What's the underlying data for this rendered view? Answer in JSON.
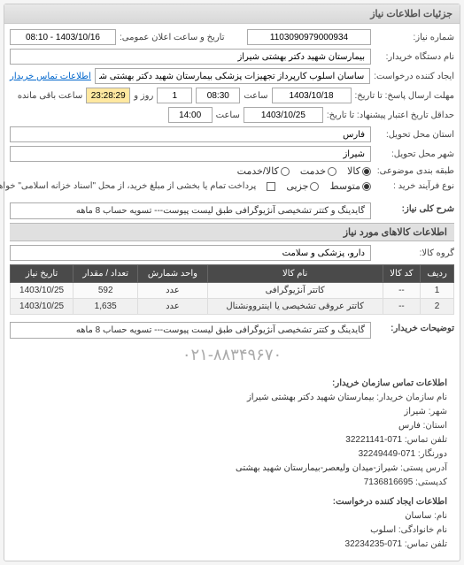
{
  "panel": {
    "title": "جزئیات اطلاعات نیاز"
  },
  "fields": {
    "request_no_label": "شماره نیاز:",
    "request_no": "1103090979000934",
    "public_date_label": "تاریخ و ساعت اعلان عمومی:",
    "public_date": "1403/10/16 - 08:10",
    "buyer_org_label": "نام دستگاه خریدار:",
    "buyer_org": "بیمارستان شهید دکتر بهشتی شیراز",
    "requester_label": "ایجاد کننده درخواست:",
    "requester": "ساسان اسلوب کارپرداز تجهیزات پزشکی بیمارستان شهید دکتر بهشتی شیراز",
    "buyer_contact_link": "اطلاعات تماس خریدار",
    "reply_deadline_label": "مهلت ارسال پاسخ: تا تاریخ:",
    "reply_date": "1403/10/18",
    "time_label": "ساعت",
    "reply_time": "08:30",
    "days_sep": "روز و",
    "days": "1",
    "remaining_label": "ساعت باقی مانده",
    "remaining": "23:28:29",
    "validity_label": "حداقل تاریخ اعتبار پیشنهاد: تا تاریخ:",
    "validity_date": "1403/10/25",
    "validity_time": "14:00",
    "delivery_province_label": "استان محل تحویل:",
    "delivery_province": "فارس",
    "delivery_city_label": "شهر محل تحویل:",
    "delivery_city": "شیراز",
    "priority_label": "طبقه بندی موضوعی:",
    "priority_goods": "کالا",
    "priority_service": "خدمت",
    "priority_both": "کالا/خدمت",
    "process_label": "نوع فرآیند خرید :",
    "process_small": "متوسط",
    "process_partial": "جزیی",
    "process_note": "پرداخت تمام یا بخشی از مبلغ خرید، از محل \"اسناد خزانه اسلامی\" خواهد بود.",
    "summary_label": "شرح کلی نیاز:",
    "summary": "گایدینگ و کتتر تشخیصی آنژیوگرافی طبق لیست پیوست--- تسویه حساب 8 ماهه",
    "items_section": "اطلاعات کالاهای مورد نیاز",
    "group_label": "گروه کالا:",
    "group": "دارو، پزشکی و سلامت",
    "buyer_notes_label": "توضیحات خریدار:",
    "buyer_notes": "گایدینگ و کتتر تشخیصی آنژیوگرافی طبق لیست پیوست--- تسویه حساب 8 ماهه",
    "contact_phone_large": "۰۲۱-۸۸۳۴۹۶۷۰"
  },
  "table": {
    "headers": [
      "ردیف",
      "کد کالا",
      "نام کالا",
      "واحد شمارش",
      "تعداد / مقدار",
      "تاریخ نیاز"
    ],
    "rows": [
      [
        "1",
        "--",
        "کاتتر آنژیوگرافی",
        "عدد",
        "592",
        "1403/10/25"
      ],
      [
        "2",
        "--",
        "کاتتر عروقی تشخیصی یا اینتروونشنال",
        "عدد",
        "1,635",
        "1403/10/25"
      ]
    ]
  },
  "contact1": {
    "title": "اطلاعات تماس سازمان خریدار:",
    "org_label": "نام سازمان خریدار:",
    "org": "بیمارستان شهید دکتر بهشتی شیراز",
    "city_label": "شهر:",
    "city": "شیراز",
    "province_label": "استان:",
    "province": "فارس",
    "phone_label": "تلفن تماس:",
    "phone": "071-32221141",
    "fax_label": "دورنگار:",
    "fax": "071-32249449",
    "postal_label": "آدرس پستی:",
    "postal": "شیراز-میدان ولیعصر-بیمارستان شهید بهشتی",
    "zip_label": "کدپستی:",
    "zip": "7136816695"
  },
  "contact2": {
    "title": "اطلاعات ایجاد کننده درخواست:",
    "name_label": "نام:",
    "name": "ساسان",
    "lname_label": "نام خانوادگی:",
    "lname": "اسلوب",
    "phone_label": "تلفن تماس:",
    "phone": "071-32234235"
  }
}
